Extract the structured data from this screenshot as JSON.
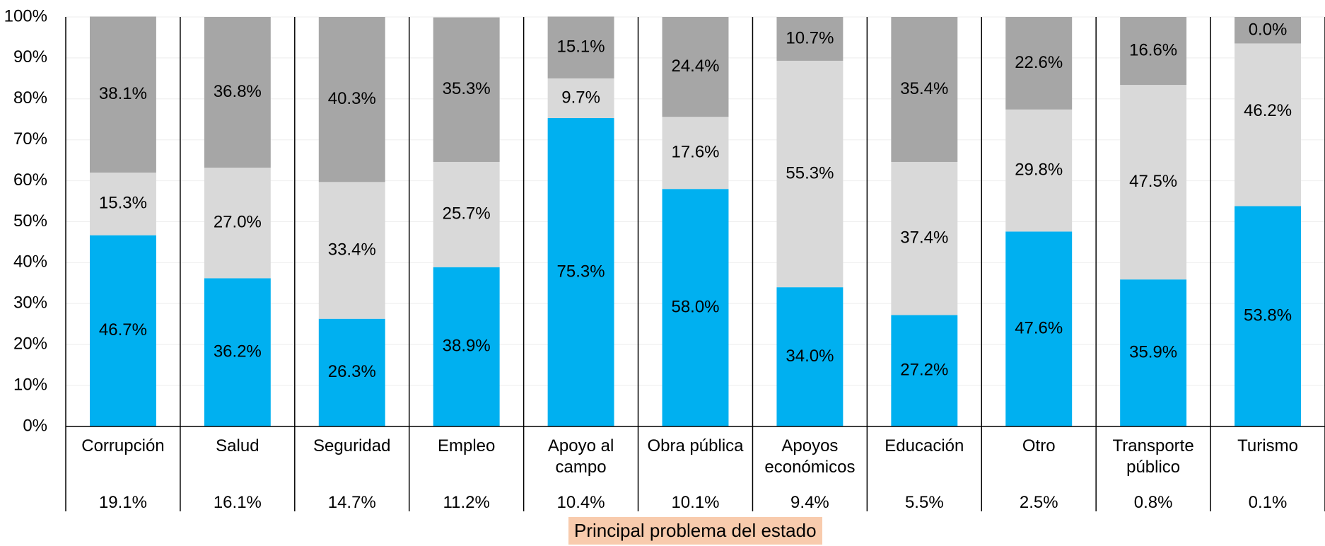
{
  "chart_data": {
    "type": "stacked_bar",
    "xlabel": "Principal problema del estado",
    "categories": [
      "Corrupción",
      "Salud",
      "Seguridad",
      "Empleo",
      "Apoyo al campo",
      "Obra pública",
      "Apoyos económicos",
      "Educación",
      "Otro",
      "Transporte público",
      "Turismo"
    ],
    "category_shares": [
      "19.1%",
      "16.1%",
      "14.7%",
      "11.2%",
      "10.4%",
      "10.1%",
      "9.4%",
      "5.5%",
      "2.5%",
      "0.8%",
      "0.1%"
    ],
    "series": [
      {
        "color": "#00b0f0",
        "values": [
          46.7,
          36.2,
          26.3,
          38.9,
          75.3,
          58.0,
          34.0,
          27.2,
          47.6,
          35.9,
          53.8
        ],
        "value_labels": [
          "46.7%",
          "36.2%",
          "26.3%",
          "38.9%",
          "75.3%",
          "58.0%",
          "34.0%",
          "27.2%",
          "47.6%",
          "35.9%",
          "53.8%"
        ]
      },
      {
        "color": "#d9d9d9",
        "values": [
          15.3,
          27.0,
          33.4,
          25.7,
          9.7,
          17.6,
          55.3,
          37.4,
          29.8,
          47.5,
          46.2
        ],
        "value_labels": [
          "15.3%",
          "27.0%",
          "33.4%",
          "25.7%",
          "9.7%",
          "17.6%",
          "55.3%",
          "37.4%",
          "29.8%",
          "47.5%",
          "46.2%"
        ]
      },
      {
        "color": "#a6a6a6",
        "values": [
          38.1,
          36.8,
          40.3,
          35.3,
          15.1,
          24.4,
          10.7,
          35.4,
          22.6,
          16.6,
          0.0
        ],
        "value_labels": [
          "38.1%",
          "36.8%",
          "40.3%",
          "35.3%",
          "15.1%",
          "24.4%",
          "10.7%",
          "35.4%",
          "22.6%",
          "16.6%",
          "0.0%"
        ]
      }
    ],
    "ylim": [
      0,
      100
    ],
    "yticks": [
      {
        "value": 0,
        "label": "0%"
      },
      {
        "value": 10,
        "label": "10%"
      },
      {
        "value": 20,
        "label": "20%"
      },
      {
        "value": 30,
        "label": "30%"
      },
      {
        "value": 40,
        "label": "40%"
      },
      {
        "value": 50,
        "label": "50%"
      },
      {
        "value": 60,
        "label": "60%"
      },
      {
        "value": 70,
        "label": "70%"
      },
      {
        "value": 80,
        "label": "80%"
      },
      {
        "value": 90,
        "label": "90%"
      },
      {
        "value": 100,
        "label": "100%"
      }
    ],
    "grid": true
  }
}
